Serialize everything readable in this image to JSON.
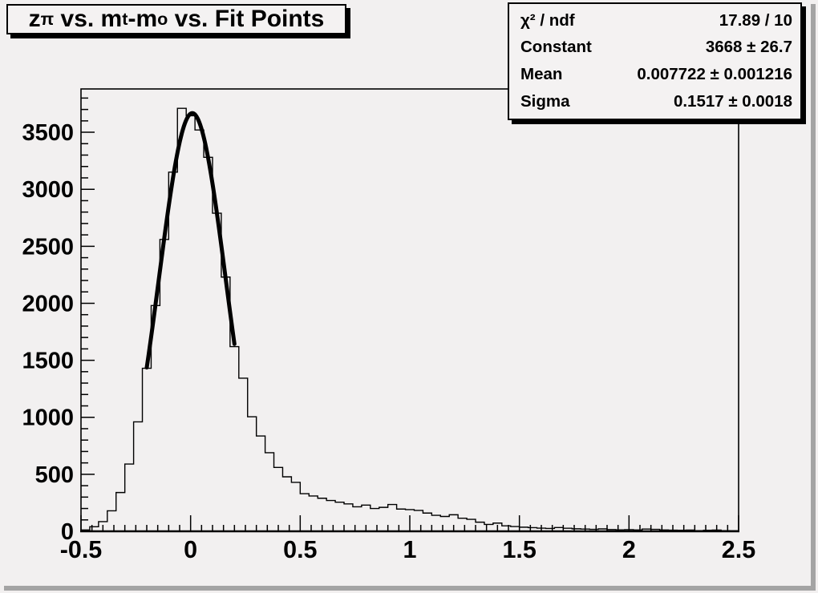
{
  "app": {
    "kind": "ROOT histogram canvas",
    "background_color": "#f2f0f0",
    "border_shadow_color": "#a4a4a4",
    "pave_fill_color": "#f4f2f2",
    "line_color": "#000000"
  },
  "title_box": {
    "parts": [
      {
        "t": "z"
      },
      {
        "t": "π",
        "sub": true
      },
      {
        "t": " vs. m"
      },
      {
        "t": "t",
        "sub": true
      },
      {
        "t": "-m"
      },
      {
        "t": "o",
        "sub": true
      },
      {
        "t": " vs. Fit Points"
      }
    ]
  },
  "stats_box": {
    "rows": [
      {
        "label": "χ² / ndf",
        "value": "17.89 / 10"
      },
      {
        "label": "Constant",
        "value": "3668 ± 26.7"
      },
      {
        "label": "Mean",
        "value": "0.007722 ± 0.001216"
      },
      {
        "label": "Sigma",
        "value": "0.1517 ± 0.0018"
      }
    ]
  },
  "chart_data": {
    "type": "bar",
    "subtype": "step-histogram-with-gaussian-fit",
    "title": "z_pi vs. m_t-m_o vs. Fit Points",
    "xlabel": "",
    "ylabel": "",
    "xlim": [
      -0.5,
      2.5
    ],
    "ylim": [
      0,
      3880
    ],
    "grid": false,
    "legend": false,
    "x_start": -0.5,
    "bin_width": 0.04,
    "values": [
      12,
      40,
      85,
      180,
      340,
      590,
      960,
      1430,
      1980,
      2560,
      3150,
      3710,
      3645,
      3520,
      3280,
      2790,
      2230,
      1620,
      1343,
      1005,
      836,
      689,
      560,
      478,
      429,
      330,
      310,
      290,
      270,
      255,
      240,
      215,
      230,
      200,
      210,
      235,
      195,
      190,
      183,
      160,
      140,
      130,
      145,
      115,
      105,
      80,
      60,
      72,
      48,
      42,
      36,
      32,
      28,
      25,
      33,
      27,
      22,
      20,
      17,
      21,
      15,
      13,
      14,
      12,
      20,
      17,
      12,
      10,
      9,
      11,
      6,
      9,
      11,
      6,
      5
    ],
    "x_tick_labels": [
      "-0.5",
      "0",
      "0.5",
      "1",
      "1.5",
      "2",
      "2.5"
    ],
    "x_ticks": [
      -0.5,
      0,
      0.5,
      1,
      1.5,
      2,
      2.5
    ],
    "x_minor_step": 0.05,
    "y_tick_labels": [
      "0",
      "500",
      "1000",
      "1500",
      "2000",
      "2500",
      "3000",
      "3500"
    ],
    "y_ticks": [
      0,
      500,
      1000,
      1500,
      2000,
      2500,
      3000,
      3500
    ],
    "y_minor_step": 100,
    "fit": {
      "shape": "gaussian",
      "constant": 3668,
      "mean": 0.007722,
      "sigma": 0.1517,
      "range": [
        -0.2,
        0.2
      ]
    }
  }
}
